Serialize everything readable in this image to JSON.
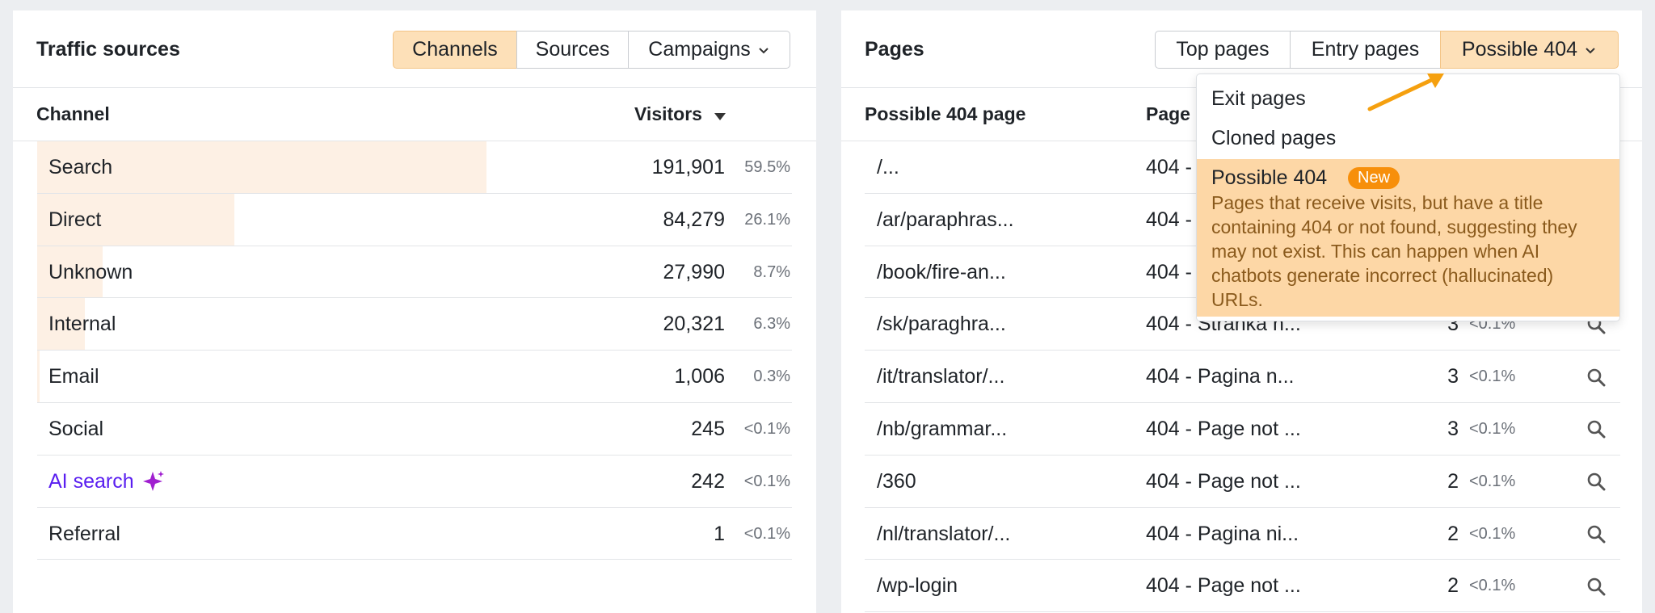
{
  "traffic_sources": {
    "title": "Traffic sources",
    "tabs": [
      "Channels",
      "Sources",
      "Campaigns"
    ],
    "columns": [
      "Channel",
      "Visitors"
    ],
    "rows": [
      {
        "name": "Search",
        "visitors": "191,901",
        "share": 59.5,
        "share_label": "59.5%"
      },
      {
        "name": "Direct",
        "visitors": "84,279",
        "share": 26.1,
        "share_label": "26.1%"
      },
      {
        "name": "Unknown",
        "visitors": "27,990",
        "share": 8.7,
        "share_label": "8.7%"
      },
      {
        "name": "Internal",
        "visitors": "20,321",
        "share": 6.3,
        "share_label": "6.3%"
      },
      {
        "name": "Email",
        "visitors": "1,006",
        "share": 0.3,
        "share_label": "0.3%"
      },
      {
        "name": "Social",
        "visitors": "245",
        "share": null,
        "share_label": "<0.1%"
      },
      {
        "name": "AI search",
        "visitors": "242",
        "share": null,
        "share_label": "<0.1%",
        "color": "#5a1ff0"
      },
      {
        "name": "Referral",
        "visitors": "1",
        "share": null,
        "share_label": "<0.1%"
      }
    ]
  },
  "pages": {
    "title": "Pages",
    "tabs": [
      "Top pages",
      "Entry pages",
      "Possible 404"
    ],
    "columns": [
      "Possible 404 page",
      "Page"
    ],
    "rows": [
      {
        "page": "/...",
        "page_title": "404 -"
      },
      {
        "page": "/ar/paraphras...",
        "page_title": "404 -"
      },
      {
        "page": "/book/fire-an...",
        "page_title": "404 -"
      },
      {
        "page": "/sk/paraghra...",
        "page_title": "404 - Stranka n...",
        "visitors": "3",
        "share_label": "<0.1%"
      },
      {
        "page": "/it/translator/...",
        "page_title": "404 - Pagina n...",
        "visitors": "3",
        "share_label": "<0.1%"
      },
      {
        "page": "/nb/grammar...",
        "page_title": "404 - Page not ...",
        "visitors": "3",
        "share_label": "<0.1%"
      },
      {
        "page": "/360",
        "page_title": "404 - Page not ...",
        "visitors": "2",
        "share_label": "<0.1%"
      },
      {
        "page": "/nl/translator/...",
        "page_title": "404 - Pagina ni...",
        "visitors": "2",
        "share_label": "<0.1%"
      },
      {
        "page": "/wp-login",
        "page_title": "404 - Page not ...",
        "visitors": "2",
        "share_label": "<0.1%"
      }
    ],
    "dropdown": {
      "items": [
        "Exit pages",
        "Cloned pages"
      ],
      "selected": {
        "label": "Possible 404",
        "badge": "New",
        "description": "Pages that receive visits, but have a title containing 404 or not found, suggesting they may not exist. This can happen when AI chatbots generate incorrect (hallucinated) URLs."
      }
    }
  }
}
